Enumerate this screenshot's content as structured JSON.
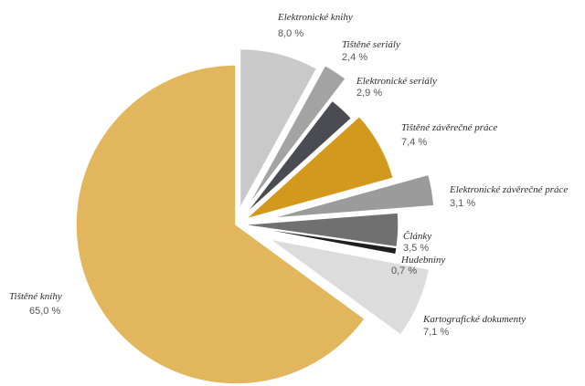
{
  "chart_data": {
    "type": "pie",
    "categories": [
      "Elektronické knihy",
      "Tištěné seriály",
      "Elektronické seriály",
      "Tištěné závěrečné práce",
      "Elektronické závěrečné práce",
      "Články",
      "Hudebniny",
      "Kartografické dokumenty",
      "Tištěné knihy"
    ],
    "values": [
      8.0,
      2.4,
      2.9,
      7.4,
      3.1,
      3.5,
      0.7,
      7.1,
      65.0
    ],
    "value_labels": [
      "8,0 %",
      "2,4 %",
      "2,9 %",
      "7,4 %",
      "3,1 %",
      "3,5 %",
      "0,7 %",
      "7,1 %",
      "65,0 %"
    ],
    "colors": [
      "#c9c9c9",
      "#a3a3a3",
      "#4b4c53",
      "#d3991c",
      "#9b9b9b",
      "#707070",
      "#1f1f1f",
      "#dcdcdc",
      "#e2b65c"
    ],
    "exploded": true,
    "legend": "none"
  }
}
